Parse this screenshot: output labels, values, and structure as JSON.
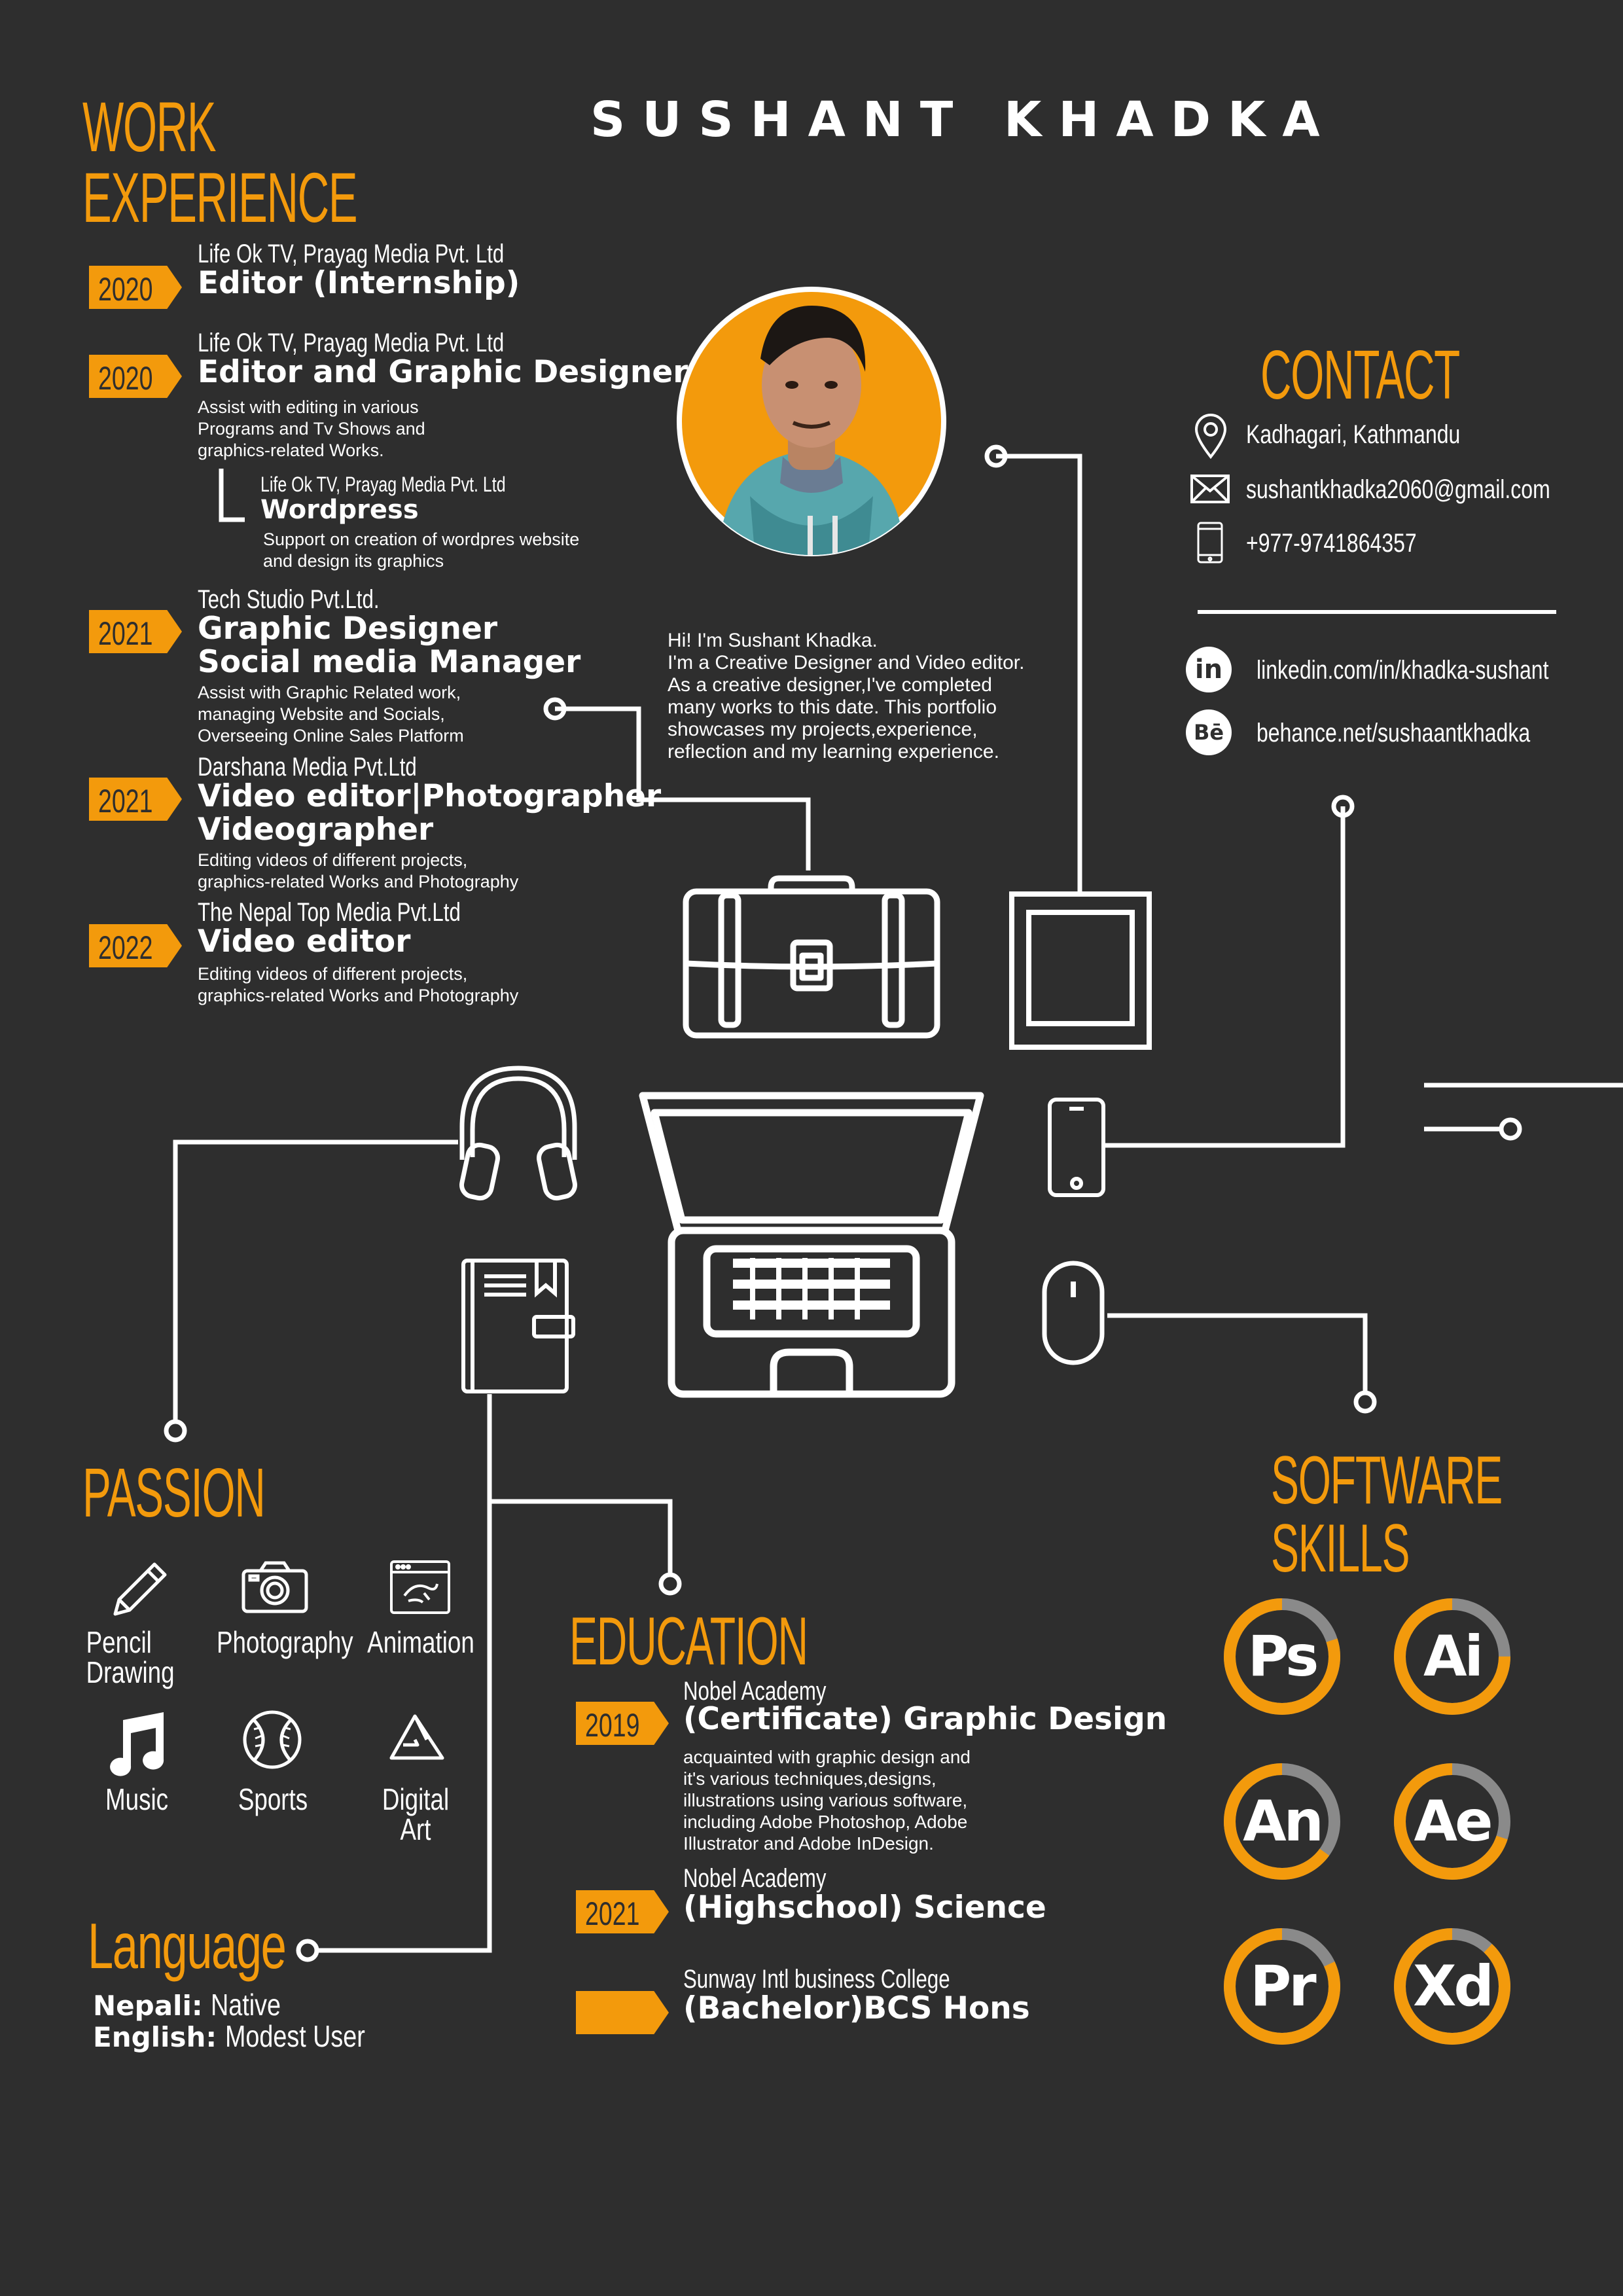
{
  "name": "SUSHANT KHADKA",
  "headings": {
    "work_line1": "WORK",
    "work_line2": "EXPERIENCE",
    "contact": "CONTACT",
    "passion": "PASSION",
    "education": "EDUCATION",
    "software_line1": "SOFTWARE",
    "software_line2": "SKILLS",
    "language": "Language"
  },
  "work": [
    {
      "year": "2020",
      "company": "Life Ok TV, Prayag Media Pvt. Ltd",
      "role": "Editor (Internship)"
    },
    {
      "year": "2020",
      "company": "Life Ok TV, Prayag Media Pvt. Ltd",
      "role": "Editor and Graphic Designer",
      "desc": [
        "Assist with editing in various",
        "Programs and Tv Shows and",
        "graphics-related Works."
      ]
    },
    {
      "company": "Life Ok TV, Prayag Media Pvt. Ltd",
      "role": "Wordpress",
      "desc": [
        "Support on creation of wordpres website",
        "and design its graphics"
      ]
    },
    {
      "year": "2021",
      "company": "Tech Studio Pvt.Ltd.",
      "role_lines": [
        "Graphic Designer",
        "Social media Manager"
      ],
      "desc": [
        "Assist with Graphic Related work,",
        "managing Website and Socials,",
        "Overseeing Online Sales Platform"
      ]
    },
    {
      "year": "2021",
      "company": "Darshana Media Pvt.Ltd",
      "role_lines": [
        "Video editor|Photographer",
        "Videographer"
      ],
      "desc": [
        "Editing videos of different projects,",
        "graphics-related Works and Photography"
      ]
    },
    {
      "year": "2022",
      "company": "The Nepal Top Media Pvt.Ltd",
      "role": "Video editor",
      "desc": [
        "Editing videos of different projects,",
        "graphics-related Works and Photography"
      ]
    }
  ],
  "bio": [
    "Hi! I'm Sushant Khadka.",
    "I'm a Creative Designer and Video editor.",
    "As a creative designer,I've completed",
    "many works to this date. This portfolio",
    "showcases my projects,experience,",
    "reflection and my learning experience."
  ],
  "contact": {
    "address": "Kadhagari, Kathmandu",
    "email": "sushantkhadka2060@gmail.com",
    "phone": "+977-9741864357",
    "linkedin": "linkedin.com/in/khadka-sushant",
    "behance": "behance.net/sushaantkhadka",
    "linkedin_badge": "in",
    "behance_badge": "Bē"
  },
  "passion": [
    {
      "label_lines": [
        "Pencil",
        "Drawing"
      ],
      "icon": "pencil-icon"
    },
    {
      "label_lines": [
        "Photography"
      ],
      "icon": "camera-icon"
    },
    {
      "label_lines": [
        "Animation"
      ],
      "icon": "animation-icon"
    },
    {
      "label_lines": [
        "Music"
      ],
      "icon": "music-note-icon"
    },
    {
      "label_lines": [
        "Sports"
      ],
      "icon": "ball-icon"
    },
    {
      "label_lines": [
        "Digital",
        "Art"
      ],
      "icon": "digital-art-icon"
    }
  ],
  "language": [
    {
      "name": "Nepali:",
      "level": "Native"
    },
    {
      "name": "English:",
      "level": "Modest User"
    }
  ],
  "education": [
    {
      "year": "2019",
      "school": "Nobel Academy",
      "program": "(Certificate) Graphic Design",
      "desc": [
        "acquainted with graphic design and",
        "it's various techniques,designs,",
        "illustrations using various software,",
        "including Adobe Photoshop, Adobe",
        "Illustrator and Adobe InDesign."
      ]
    },
    {
      "year": "2021",
      "school": "Nobel Academy",
      "program": "(Highschool) Science"
    },
    {
      "year": "",
      "school": "Sunway Intl business College",
      "program": "(Bachelor)BCS Hons"
    }
  ],
  "skills": [
    {
      "abbr": "Ps",
      "level": 0.8
    },
    {
      "abbr": "Ai",
      "level": 0.75
    },
    {
      "abbr": "An",
      "level": 0.65
    },
    {
      "abbr": "Ae",
      "level": 0.7
    },
    {
      "abbr": "Pr",
      "level": 0.82
    },
    {
      "abbr": "Xd",
      "level": 0.88
    }
  ],
  "colors": {
    "background": "#2e2e2e",
    "accent": "#f39a0c",
    "ring_track": "#8a8a8a",
    "text": "#ffffff"
  }
}
